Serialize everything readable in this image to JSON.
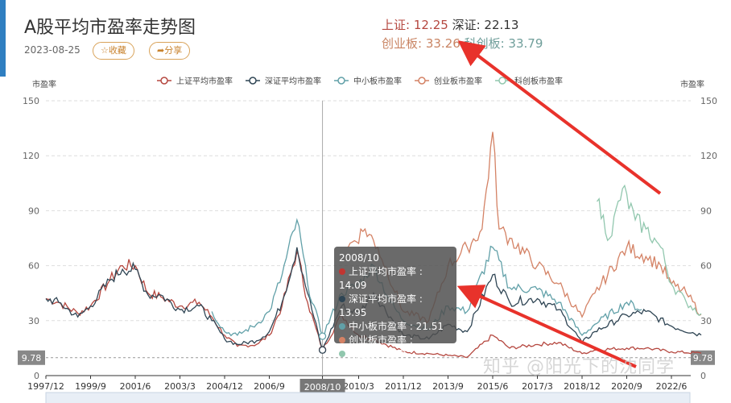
{
  "header": {
    "title": "A股平均市盈率走势图",
    "date": "2023-08-25",
    "favorite_label": "☆收藏",
    "share_label": "➦分享"
  },
  "stats": {
    "sh_label": "上证:",
    "sh_value": "12.25",
    "sz_label": "深证:",
    "sz_value": "22.13",
    "cy_label": "创业板:",
    "cy_value": "33.26",
    "kc_label": "科创板:",
    "kc_value": "33.79"
  },
  "tooltip": {
    "date": "2008/10",
    "rows": [
      {
        "label": "上证平均市盈率 : 14.09",
        "color": "#c23531"
      },
      {
        "label": "深证平均市盈率 : 13.95",
        "color": "#2f4554"
      },
      {
        "label": "中小板市盈率 : 21.51",
        "color": "#61a0a8"
      },
      {
        "label": "创业板市盈率 :",
        "color": "#d48265"
      },
      {
        "label": "科创板市盈率 :",
        "color": "#91c7ae"
      }
    ]
  },
  "watermark": "知乎 @阳光下的沈同学",
  "chart_data": {
    "type": "line",
    "ylabel_left": "市盈率",
    "ylabel_right": "市盈率",
    "ylim": [
      0,
      150
    ],
    "yticks": [
      0,
      30,
      60,
      90,
      120,
      150
    ],
    "xticks": [
      "1997/12",
      "1999/9",
      "2001/6",
      "2003/3",
      "2004/12",
      "2006/9",
      "2008/10",
      "2010/3",
      "2011/12",
      "2013/9",
      "2015/6",
      "2017/3",
      "2018/12",
      "2020/9",
      "2022/6"
    ],
    "markline": {
      "value": 9.78,
      "label": "9.78"
    },
    "crosshair": "2008/10",
    "legend_position": "top",
    "series": [
      {
        "name": "上证平均市盈率",
        "color": "#b5473f",
        "points": [
          [
            "1997/12",
            42
          ],
          [
            "1998/6",
            40
          ],
          [
            "1999/3",
            34
          ],
          [
            "1999/9",
            38
          ],
          [
            "2000/6",
            52
          ],
          [
            "2000/12",
            60
          ],
          [
            "2001/6",
            60
          ],
          [
            "2001/12",
            45
          ],
          [
            "2002/6",
            43
          ],
          [
            "2003/3",
            38
          ],
          [
            "2003/12",
            40
          ],
          [
            "2004/6",
            32
          ],
          [
            "2004/12",
            22
          ],
          [
            "2005/6",
            16
          ],
          [
            "2006/3",
            17
          ],
          [
            "2006/9",
            22
          ],
          [
            "2007/3",
            38
          ],
          [
            "2007/10",
            68
          ],
          [
            "2008/3",
            40
          ],
          [
            "2008/10",
            14.09
          ],
          [
            "2009/7",
            33
          ],
          [
            "2010/3",
            22
          ],
          [
            "2010/10",
            20
          ],
          [
            "2011/12",
            13
          ],
          [
            "2012/12",
            12
          ],
          [
            "2013/9",
            11
          ],
          [
            "2014/6",
            10
          ],
          [
            "2015/6",
            22
          ],
          [
            "2016/2",
            15
          ],
          [
            "2017/3",
            17
          ],
          [
            "2018/1",
            18
          ],
          [
            "2018/12",
            12
          ],
          [
            "2019/6",
            14
          ],
          [
            "2020/9",
            15
          ],
          [
            "2021/6",
            15
          ],
          [
            "2022/6",
            13
          ],
          [
            "2023/8",
            12.25
          ]
        ]
      },
      {
        "name": "深证平均市盈率",
        "color": "#2f4554",
        "points": [
          [
            "1997/12",
            42
          ],
          [
            "1998/6",
            40
          ],
          [
            "1999/3",
            32
          ],
          [
            "1999/9",
            38
          ],
          [
            "2000/6",
            52
          ],
          [
            "2000/12",
            58
          ],
          [
            "2001/6",
            58
          ],
          [
            "2001/12",
            44
          ],
          [
            "2002/6",
            44
          ],
          [
            "2003/3",
            36
          ],
          [
            "2003/12",
            38
          ],
          [
            "2004/6",
            30
          ],
          [
            "2004/12",
            20
          ],
          [
            "2005/6",
            17
          ],
          [
            "2006/3",
            19
          ],
          [
            "2006/9",
            24
          ],
          [
            "2007/3",
            40
          ],
          [
            "2007/10",
            70
          ],
          [
            "2008/3",
            45
          ],
          [
            "2008/10",
            13.95
          ],
          [
            "2009/7",
            38
          ],
          [
            "2010/3",
            34
          ],
          [
            "2010/10",
            45
          ],
          [
            "2011/6",
            32
          ],
          [
            "2011/12",
            22
          ],
          [
            "2012/12",
            20
          ],
          [
            "2013/9",
            28
          ],
          [
            "2014/6",
            24
          ],
          [
            "2015/6",
            55
          ],
          [
            "2016/2",
            40
          ],
          [
            "2017/3",
            42
          ],
          [
            "2018/1",
            36
          ],
          [
            "2018/12",
            18
          ],
          [
            "2019/6",
            24
          ],
          [
            "2020/9",
            33
          ],
          [
            "2021/6",
            35
          ],
          [
            "2022/6",
            27
          ],
          [
            "2023/8",
            22.13
          ]
        ]
      },
      {
        "name": "中小板市盈率",
        "color": "#61a0a8",
        "points": [
          [
            "2004/6",
            35
          ],
          [
            "2004/12",
            24
          ],
          [
            "2005/6",
            22
          ],
          [
            "2006/3",
            28
          ],
          [
            "2006/9",
            35
          ],
          [
            "2007/3",
            55
          ],
          [
            "2007/10",
            85
          ],
          [
            "2008/3",
            50
          ],
          [
            "2008/10",
            21.51
          ],
          [
            "2009/7",
            45
          ],
          [
            "2010/3",
            50
          ],
          [
            "2010/10",
            60
          ],
          [
            "2011/6",
            40
          ],
          [
            "2011/12",
            30
          ],
          [
            "2012/12",
            25
          ],
          [
            "2013/9",
            38
          ],
          [
            "2014/6",
            35
          ],
          [
            "2015/6",
            70
          ],
          [
            "2016/2",
            48
          ],
          [
            "2017/3",
            47
          ],
          [
            "2018/1",
            40
          ],
          [
            "2018/12",
            22
          ],
          [
            "2019/6",
            28
          ],
          [
            "2020/9",
            40
          ],
          [
            "2021/4",
            36
          ]
        ]
      },
      {
        "name": "创业板市盈率",
        "color": "#d48265",
        "points": [
          [
            "2009/10",
            70
          ],
          [
            "2010/6",
            80
          ],
          [
            "2010/12",
            70
          ],
          [
            "2011/12",
            35
          ],
          [
            "2012/12",
            30
          ],
          [
            "2013/9",
            60
          ],
          [
            "2014/6",
            70
          ],
          [
            "2015/1",
            80
          ],
          [
            "2015/6",
            133
          ],
          [
            "2015/9",
            80
          ],
          [
            "2016/2",
            75
          ],
          [
            "2017/3",
            60
          ],
          [
            "2018/1",
            50
          ],
          [
            "2018/12",
            32
          ],
          [
            "2019/6",
            45
          ],
          [
            "2020/9",
            70
          ],
          [
            "2021/6",
            65
          ],
          [
            "2022/1",
            60
          ],
          [
            "2022/6",
            50
          ],
          [
            "2023/1",
            45
          ],
          [
            "2023/8",
            33.26
          ]
        ]
      },
      {
        "name": "科创板市盈率",
        "color": "#91c7ae",
        "points": [
          [
            "2019/7",
            95
          ],
          [
            "2020/1",
            75
          ],
          [
            "2020/7",
            102
          ],
          [
            "2021/1",
            85
          ],
          [
            "2021/6",
            80
          ],
          [
            "2022/1",
            70
          ],
          [
            "2022/6",
            50
          ],
          [
            "2023/1",
            40
          ],
          [
            "2023/8",
            33.79
          ]
        ]
      }
    ]
  }
}
